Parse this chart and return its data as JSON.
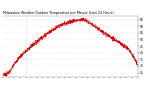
{
  "title": "Milwaukee Weather Outdoor Temperature per Minute (Last 24 Hours)",
  "background_color": "#ffffff",
  "line_color": "#dd0000",
  "grid_color": "#cccccc",
  "ylim": [
    22,
    68
  ],
  "xlim": [
    0,
    1440
  ],
  "ytick_values": [
    65,
    60,
    55,
    50,
    45,
    40,
    35,
    30,
    25
  ],
  "vline_x": 240,
  "vline_color": "#bbbbbb",
  "figsize": [
    1.6,
    0.87
  ],
  "dpi": 100
}
